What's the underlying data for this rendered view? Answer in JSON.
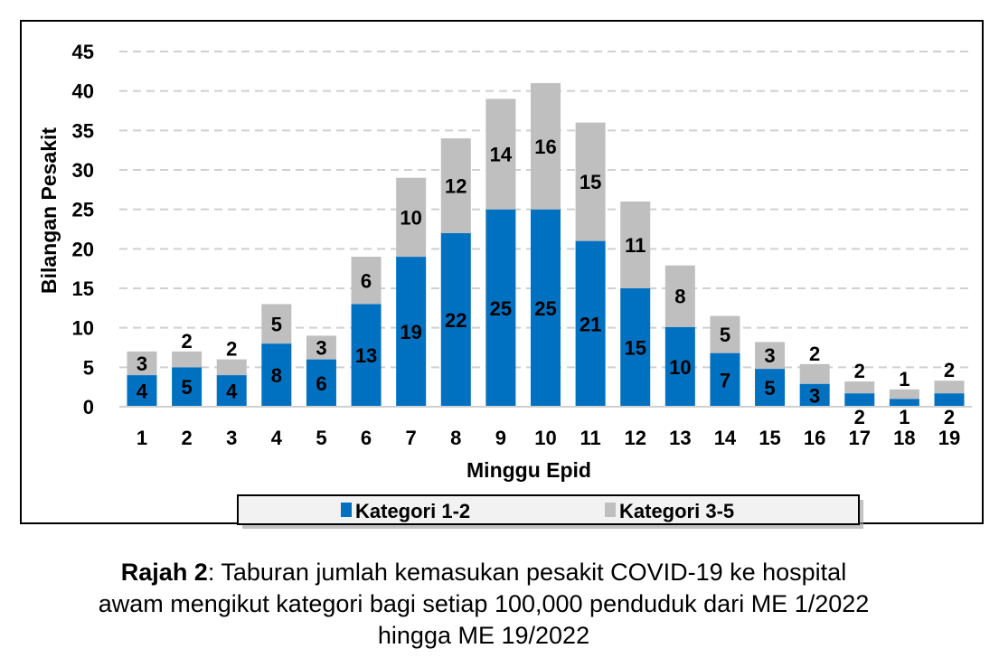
{
  "chart_data": {
    "type": "bar",
    "stacked": true,
    "title": "",
    "xlabel": "Minggu Epid",
    "ylabel": "Bilangan Pesakit",
    "ylim": [
      0,
      45
    ],
    "yticks": [
      0,
      5,
      10,
      15,
      20,
      25,
      30,
      35,
      40,
      45
    ],
    "grid": true,
    "legend_position": "bottom",
    "categories": [
      "1",
      "2",
      "3",
      "4",
      "5",
      "6",
      "7",
      "8",
      "9",
      "10",
      "11",
      "12",
      "13",
      "14",
      "15",
      "16",
      "17",
      "18",
      "19"
    ],
    "series": [
      {
        "name": "Kategori 1-2",
        "color": "#0070C0",
        "values": [
          4,
          5,
          4,
          8,
          6,
          13,
          19,
          22,
          25,
          25,
          21,
          15,
          10.1,
          6.8,
          4.8,
          2.9,
          1.7,
          1.0,
          1.7
        ],
        "labels": [
          "4",
          "5",
          "4",
          "8",
          "6",
          "13",
          "19",
          "22",
          "25",
          "25",
          "21",
          "15",
          "10",
          "7",
          "5",
          "3",
          "2",
          "1",
          "2"
        ]
      },
      {
        "name": "Kategori 3-5",
        "color": "#BFBFBF",
        "values": [
          3,
          2,
          2,
          5,
          3,
          6,
          10,
          12,
          14,
          16,
          15,
          11,
          7.8,
          4.7,
          3.4,
          2.5,
          1.5,
          1.2,
          1.6
        ],
        "labels": [
          "3",
          "2",
          "2",
          "5",
          "3",
          "6",
          "10",
          "12",
          "14",
          "16",
          "15",
          "11",
          "8",
          "5",
          "3",
          "2",
          "2",
          "1",
          "2"
        ]
      }
    ]
  },
  "caption": {
    "bold": "Rajah 2",
    "line1": ": Taburan jumlah kemasukan pesakit COVID-19 ke hospital",
    "line2": "awam mengikut kategori bagi setiap 100,000 penduduk dari ME 1/2022",
    "line3": "hingga ME 19/2022"
  }
}
